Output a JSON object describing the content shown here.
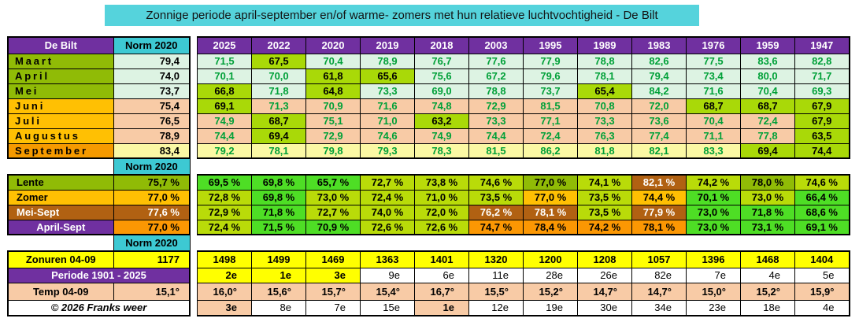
{
  "title": "Zonnige periode april-september en/of warme- zomers met hun relatieve luchtvochtigheid - De Bilt",
  "colors": {
    "header_purple": "#7030A0",
    "norm_cyan": "#3DC9D3",
    "title_cyan": "#55D3DC",
    "month_green": "#90BB06",
    "month_gold": "#FFC003",
    "month_orange": "#F69A00",
    "cell_mint": "#DDF3E3",
    "cell_peach": "#F8CBA6",
    "cell_paleyellow": "#FBF8A4",
    "highlight_chartreuse": "#A9D908",
    "season_green": "#4EDE25",
    "season_yellowgreen": "#B9DB09",
    "season_brown": "#B16112",
    "season_orange": "#FB9703",
    "row_yellow": "#FFFF00",
    "value_green_text": "#00A038"
  },
  "table": {
    "header": {
      "label": "De Bilt",
      "norm": "Norm 2020",
      "years": [
        "2025",
        "2022",
        "2020",
        "2019",
        "2018",
        "2003",
        "1995",
        "1989",
        "1983",
        "1976",
        "1959",
        "1947"
      ]
    },
    "norm_label": "Norm 2020",
    "months": [
      {
        "label": "Maart",
        "group": "spring",
        "norm": "79,4",
        "values": [
          {
            "v": "71,5"
          },
          {
            "v": "67,5",
            "hl": true
          },
          {
            "v": "70,4"
          },
          {
            "v": "78,9"
          },
          {
            "v": "76,7"
          },
          {
            "v": "77,6"
          },
          {
            "v": "77,9"
          },
          {
            "v": "78,8"
          },
          {
            "v": "82,6"
          },
          {
            "v": "77,5"
          },
          {
            "v": "83,6"
          },
          {
            "v": "82,8"
          }
        ]
      },
      {
        "label": "April",
        "group": "spring",
        "norm": "74,0",
        "values": [
          {
            "v": "70,1"
          },
          {
            "v": "70,0"
          },
          {
            "v": "61,8",
            "hl": true
          },
          {
            "v": "65,6",
            "hl": true
          },
          {
            "v": "75,6"
          },
          {
            "v": "67,2"
          },
          {
            "v": "79,6"
          },
          {
            "v": "78,1"
          },
          {
            "v": "79,4"
          },
          {
            "v": "73,4"
          },
          {
            "v": "80,0"
          },
          {
            "v": "71,7"
          }
        ]
      },
      {
        "label": "Mei",
        "group": "spring",
        "norm": "73,7",
        "values": [
          {
            "v": "66,8",
            "hl": true
          },
          {
            "v": "71,8"
          },
          {
            "v": "64,8",
            "hl": true
          },
          {
            "v": "73,3"
          },
          {
            "v": "69,0"
          },
          {
            "v": "78,8"
          },
          {
            "v": "73,7"
          },
          {
            "v": "65,4",
            "hl": true
          },
          {
            "v": "84,2"
          },
          {
            "v": "71,6"
          },
          {
            "v": "70,4"
          },
          {
            "v": "69,3"
          }
        ]
      },
      {
        "label": "Juni",
        "group": "summer",
        "norm": "75,4",
        "values": [
          {
            "v": "69,1",
            "hl": true
          },
          {
            "v": "71,3"
          },
          {
            "v": "70,9"
          },
          {
            "v": "71,6"
          },
          {
            "v": "74,8"
          },
          {
            "v": "72,9"
          },
          {
            "v": "81,5"
          },
          {
            "v": "70,8"
          },
          {
            "v": "72,0"
          },
          {
            "v": "68,7",
            "hl": true
          },
          {
            "v": "68,7",
            "hl": true
          },
          {
            "v": "67,9",
            "hl": true
          }
        ]
      },
      {
        "label": "Juli",
        "group": "summer",
        "norm": "76,5",
        "values": [
          {
            "v": "74,9"
          },
          {
            "v": "68,7",
            "hl": true
          },
          {
            "v": "75,1"
          },
          {
            "v": "71,0"
          },
          {
            "v": "63,2",
            "hl": true
          },
          {
            "v": "73,3"
          },
          {
            "v": "77,1"
          },
          {
            "v": "73,3"
          },
          {
            "v": "73,6"
          },
          {
            "v": "70,4"
          },
          {
            "v": "72,4"
          },
          {
            "v": "67,9",
            "hl": true
          }
        ]
      },
      {
        "label": "Augustus",
        "group": "summer",
        "norm": "78,9",
        "values": [
          {
            "v": "74,4"
          },
          {
            "v": "69,4",
            "hl": true
          },
          {
            "v": "72,9"
          },
          {
            "v": "74,6"
          },
          {
            "v": "74,9"
          },
          {
            "v": "74,4"
          },
          {
            "v": "72,4"
          },
          {
            "v": "76,3"
          },
          {
            "v": "77,4"
          },
          {
            "v": "71,1"
          },
          {
            "v": "77,8"
          },
          {
            "v": "63,5",
            "hl": true
          }
        ]
      },
      {
        "label": "September",
        "group": "september",
        "norm": "83,4",
        "values": [
          {
            "v": "79,2"
          },
          {
            "v": "78,1"
          },
          {
            "v": "79,8"
          },
          {
            "v": "79,3"
          },
          {
            "v": "78,3"
          },
          {
            "v": "81,5"
          },
          {
            "v": "86,2"
          },
          {
            "v": "81,8"
          },
          {
            "v": "82,1"
          },
          {
            "v": "83,3"
          },
          {
            "v": "69,4",
            "hl": true
          },
          {
            "v": "74,4",
            "hl": true
          }
        ]
      }
    ],
    "seasons": [
      {
        "label": "Lente",
        "label_c": "olive",
        "norm": "75,7 %",
        "norm_c": "olive",
        "values": [
          {
            "v": "69,5 %",
            "c": "green"
          },
          {
            "v": "69,8 %",
            "c": "green"
          },
          {
            "v": "65,7 %",
            "c": "green"
          },
          {
            "v": "72,7 %",
            "c": "yg"
          },
          {
            "v": "73,8 %",
            "c": "yg"
          },
          {
            "v": "74,6 %",
            "c": "yg"
          },
          {
            "v": "77,0 %",
            "c": "olive"
          },
          {
            "v": "74,1 %",
            "c": "yg"
          },
          {
            "v": "82,1 %",
            "c": "brown"
          },
          {
            "v": "74,2 %",
            "c": "yg"
          },
          {
            "v": "78,0 %",
            "c": "olive"
          },
          {
            "v": "74,6 %",
            "c": "yg"
          }
        ]
      },
      {
        "label": "Zomer",
        "label_c": "gold",
        "norm": "77,0 %",
        "norm_c": "gold",
        "values": [
          {
            "v": "72,8 %",
            "c": "yg"
          },
          {
            "v": "69,8 %",
            "c": "green"
          },
          {
            "v": "73,0 %",
            "c": "yg"
          },
          {
            "v": "72,4 %",
            "c": "yg"
          },
          {
            "v": "71,0 %",
            "c": "yg"
          },
          {
            "v": "73,5 %",
            "c": "yg"
          },
          {
            "v": "77,0 %",
            "c": "gold"
          },
          {
            "v": "73,5 %",
            "c": "yg"
          },
          {
            "v": "74,4 %",
            "c": "gold"
          },
          {
            "v": "70,1 %",
            "c": "green"
          },
          {
            "v": "73,0 %",
            "c": "yg"
          },
          {
            "v": "66,4 %",
            "c": "green"
          }
        ]
      },
      {
        "label": "Mei-Sept",
        "label_c": "brown",
        "norm": "77,6 %",
        "norm_c": "brown",
        "values": [
          {
            "v": "72,9 %",
            "c": "yg"
          },
          {
            "v": "71,8 %",
            "c": "green"
          },
          {
            "v": "72,7 %",
            "c": "yg"
          },
          {
            "v": "74,0 %",
            "c": "yg"
          },
          {
            "v": "72,0 %",
            "c": "yg"
          },
          {
            "v": "76,2 %",
            "c": "brown"
          },
          {
            "v": "78,1 %",
            "c": "brown"
          },
          {
            "v": "73,5 %",
            "c": "yg"
          },
          {
            "v": "77,9 %",
            "c": "brown"
          },
          {
            "v": "73,0 %",
            "c": "green"
          },
          {
            "v": "71,8 %",
            "c": "green"
          },
          {
            "v": "68,6 %",
            "c": "green"
          }
        ]
      },
      {
        "label": "April-Sept",
        "label_c": "purple",
        "norm": "77,0 %",
        "norm_c": "orange",
        "values": [
          {
            "v": "72,4 %",
            "c": "yg"
          },
          {
            "v": "71,5 %",
            "c": "green"
          },
          {
            "v": "70,9 %",
            "c": "green"
          },
          {
            "v": "72,6 %",
            "c": "yg"
          },
          {
            "v": "72,6 %",
            "c": "yg"
          },
          {
            "v": "74,7 %",
            "c": "orange"
          },
          {
            "v": "78,4 %",
            "c": "orange"
          },
          {
            "v": "74,2 %",
            "c": "orange"
          },
          {
            "v": "78,1 %",
            "c": "orange"
          },
          {
            "v": "73,0 %",
            "c": "green"
          },
          {
            "v": "73,1 %",
            "c": "green"
          },
          {
            "v": "69,1 %",
            "c": "green"
          }
        ]
      }
    ],
    "bottom": {
      "zonuren": {
        "label": "Zonuren 04-09",
        "norm": "1177",
        "values": [
          "1498",
          "1499",
          "1469",
          "1363",
          "1401",
          "1320",
          "1200",
          "1208",
          "1057",
          "1396",
          "1468",
          "1404"
        ]
      },
      "periode": {
        "label": "Periode 1901 - 2025",
        "ranks": [
          {
            "v": "2e",
            "c": "yellow"
          },
          {
            "v": "1e",
            "c": "yellow"
          },
          {
            "v": "3e",
            "c": "yellow"
          },
          {
            "v": "9e",
            "c": "white"
          },
          {
            "v": "6e",
            "c": "white"
          },
          {
            "v": "11e",
            "c": "white"
          },
          {
            "v": "28e",
            "c": "white"
          },
          {
            "v": "26e",
            "c": "white"
          },
          {
            "v": "82e",
            "c": "white"
          },
          {
            "v": "7e",
            "c": "white"
          },
          {
            "v": "4e",
            "c": "white"
          },
          {
            "v": "5e",
            "c": "white"
          }
        ]
      },
      "temp": {
        "label": "Temp 04-09",
        "norm": "15,1°",
        "values": [
          "16,0°",
          "15,6°",
          "15,7°",
          "15,4°",
          "16,7°",
          "15,5°",
          "15,2°",
          "14,7°",
          "14,7°",
          "15,0°",
          "15,2°",
          "15,9°"
        ]
      },
      "copyright": {
        "label": "© 2026 Franks weer",
        "ranks": [
          {
            "v": "3e",
            "c": "peach"
          },
          {
            "v": "8e",
            "c": "white"
          },
          {
            "v": "7e",
            "c": "white"
          },
          {
            "v": "15e",
            "c": "white"
          },
          {
            "v": "1e",
            "c": "peach"
          },
          {
            "v": "12e",
            "c": "white"
          },
          {
            "v": "19e",
            "c": "white"
          },
          {
            "v": "30e",
            "c": "white"
          },
          {
            "v": "34e",
            "c": "white"
          },
          {
            "v": "23e",
            "c": "white"
          },
          {
            "v": "18e",
            "c": "white"
          },
          {
            "v": "4e",
            "c": "white"
          }
        ]
      }
    }
  },
  "chart_data": {
    "type": "table",
    "title": "Zonnige periode april-september en/of warme- zomers met hun relatieve luchtvochtigheid - De Bilt",
    "columns": [
      "De Bilt",
      "Norm 2020",
      "2025",
      "2022",
      "2020",
      "2019",
      "2018",
      "2003",
      "1995",
      "1989",
      "1983",
      "1976",
      "1959",
      "1947"
    ],
    "rows": [
      [
        "Maart",
        "79,4",
        "71,5",
        "67,5",
        "70,4",
        "78,9",
        "76,7",
        "77,6",
        "77,9",
        "78,8",
        "82,6",
        "77,5",
        "83,6",
        "82,8"
      ],
      [
        "April",
        "74,0",
        "70,1",
        "70,0",
        "61,8",
        "65,6",
        "75,6",
        "67,2",
        "79,6",
        "78,1",
        "79,4",
        "73,4",
        "80,0",
        "71,7"
      ],
      [
        "Mei",
        "73,7",
        "66,8",
        "71,8",
        "64,8",
        "73,3",
        "69,0",
        "78,8",
        "73,7",
        "65,4",
        "84,2",
        "71,6",
        "70,4",
        "69,3"
      ],
      [
        "Juni",
        "75,4",
        "69,1",
        "71,3",
        "70,9",
        "71,6",
        "74,8",
        "72,9",
        "81,5",
        "70,8",
        "72,0",
        "68,7",
        "68,7",
        "67,9"
      ],
      [
        "Juli",
        "76,5",
        "74,9",
        "68,7",
        "75,1",
        "71,0",
        "63,2",
        "73,3",
        "77,1",
        "73,3",
        "73,6",
        "70,4",
        "72,4",
        "67,9"
      ],
      [
        "Augustus",
        "78,9",
        "74,4",
        "69,4",
        "72,9",
        "74,6",
        "74,9",
        "74,4",
        "72,4",
        "76,3",
        "77,4",
        "71,1",
        "77,8",
        "63,5"
      ],
      [
        "September",
        "83,4",
        "79,2",
        "78,1",
        "79,8",
        "79,3",
        "78,3",
        "81,5",
        "86,2",
        "81,8",
        "82,1",
        "83,3",
        "69,4",
        "74,4"
      ],
      [
        "Lente",
        "75,7 %",
        "69,5 %",
        "69,8 %",
        "65,7 %",
        "72,7 %",
        "73,8 %",
        "74,6 %",
        "77,0 %",
        "74,1 %",
        "82,1 %",
        "74,2 %",
        "78,0 %",
        "74,6 %"
      ],
      [
        "Zomer",
        "77,0 %",
        "72,8 %",
        "69,8 %",
        "73,0 %",
        "72,4 %",
        "71,0 %",
        "73,5 %",
        "77,0 %",
        "73,5 %",
        "74,4 %",
        "70,1 %",
        "73,0 %",
        "66,4 %"
      ],
      [
        "Mei-Sept",
        "77,6 %",
        "72,9 %",
        "71,8 %",
        "72,7 %",
        "74,0 %",
        "72,0 %",
        "76,2 %",
        "78,1 %",
        "73,5 %",
        "77,9 %",
        "73,0 %",
        "71,8 %",
        "68,6 %"
      ],
      [
        "April-Sept",
        "77,0 %",
        "72,4 %",
        "71,5 %",
        "70,9 %",
        "72,6 %",
        "72,6 %",
        "74,7 %",
        "78,4 %",
        "74,2 %",
        "78,1 %",
        "73,0 %",
        "73,1 %",
        "69,1 %"
      ],
      [
        "Zonuren 04-09",
        "1177",
        "1498",
        "1499",
        "1469",
        "1363",
        "1401",
        "1320",
        "1200",
        "1208",
        "1057",
        "1396",
        "1468",
        "1404"
      ],
      [
        "Periode 1901 - 2025",
        "",
        "2e",
        "1e",
        "3e",
        "9e",
        "6e",
        "11e",
        "28e",
        "26e",
        "82e",
        "7e",
        "4e",
        "5e"
      ],
      [
        "Temp 04-09",
        "15,1°",
        "16,0°",
        "15,6°",
        "15,7°",
        "15,4°",
        "16,7°",
        "15,5°",
        "15,2°",
        "14,7°",
        "14,7°",
        "15,0°",
        "15,2°",
        "15,9°"
      ],
      [
        "© 2026 Franks weer",
        "",
        "3e",
        "8e",
        "7e",
        "15e",
        "1e",
        "12e",
        "19e",
        "30e",
        "34e",
        "23e",
        "18e",
        "4e"
      ]
    ]
  }
}
